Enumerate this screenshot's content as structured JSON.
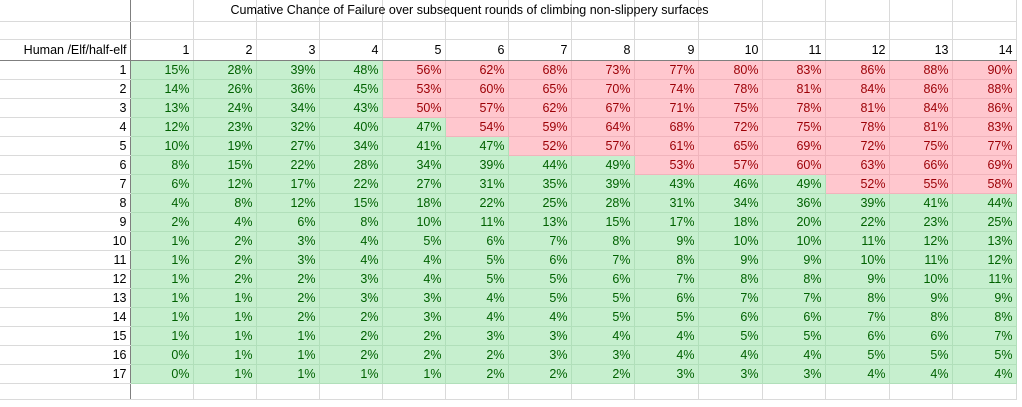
{
  "title": "Cumative Chance of Failure over subsequent rounds of climbing non-slippery surfaces",
  "row_header_label": "Human /Elf/half-elf",
  "columns": [
    "1",
    "2",
    "3",
    "4",
    "5",
    "6",
    "7",
    "8",
    "9",
    "10",
    "11",
    "12",
    "13",
    "14"
  ],
  "threshold_percent": 50,
  "colors": {
    "fail_fill": "#ffc7ce",
    "fail_text": "#9c0006",
    "pass_fill": "#c6efce",
    "pass_text": "#006100"
  },
  "rows": [
    {
      "label": "1",
      "values": [
        "15%",
        "28%",
        "39%",
        "48%",
        "56%",
        "62%",
        "68%",
        "73%",
        "77%",
        "80%",
        "83%",
        "86%",
        "88%",
        "90%"
      ]
    },
    {
      "label": "2",
      "values": [
        "14%",
        "26%",
        "36%",
        "45%",
        "53%",
        "60%",
        "65%",
        "70%",
        "74%",
        "78%",
        "81%",
        "84%",
        "86%",
        "88%"
      ]
    },
    {
      "label": "3",
      "values": [
        "13%",
        "24%",
        "34%",
        "43%",
        "50%",
        "57%",
        "62%",
        "67%",
        "71%",
        "75%",
        "78%",
        "81%",
        "84%",
        "86%"
      ]
    },
    {
      "label": "4",
      "values": [
        "12%",
        "23%",
        "32%",
        "40%",
        "47%",
        "54%",
        "59%",
        "64%",
        "68%",
        "72%",
        "75%",
        "78%",
        "81%",
        "83%"
      ]
    },
    {
      "label": "5",
      "values": [
        "10%",
        "19%",
        "27%",
        "34%",
        "41%",
        "47%",
        "52%",
        "57%",
        "61%",
        "65%",
        "69%",
        "72%",
        "75%",
        "77%"
      ]
    },
    {
      "label": "6",
      "values": [
        "8%",
        "15%",
        "22%",
        "28%",
        "34%",
        "39%",
        "44%",
        "49%",
        "53%",
        "57%",
        "60%",
        "63%",
        "66%",
        "69%"
      ]
    },
    {
      "label": "7",
      "values": [
        "6%",
        "12%",
        "17%",
        "22%",
        "27%",
        "31%",
        "35%",
        "39%",
        "43%",
        "46%",
        "49%",
        "52%",
        "55%",
        "58%"
      ]
    },
    {
      "label": "8",
      "values": [
        "4%",
        "8%",
        "12%",
        "15%",
        "18%",
        "22%",
        "25%",
        "28%",
        "31%",
        "34%",
        "36%",
        "39%",
        "41%",
        "44%"
      ]
    },
    {
      "label": "9",
      "values": [
        "2%",
        "4%",
        "6%",
        "8%",
        "10%",
        "11%",
        "13%",
        "15%",
        "17%",
        "18%",
        "20%",
        "22%",
        "23%",
        "25%"
      ]
    },
    {
      "label": "10",
      "values": [
        "1%",
        "2%",
        "3%",
        "4%",
        "5%",
        "6%",
        "7%",
        "8%",
        "9%",
        "10%",
        "10%",
        "11%",
        "12%",
        "13%"
      ]
    },
    {
      "label": "11",
      "values": [
        "1%",
        "2%",
        "3%",
        "4%",
        "4%",
        "5%",
        "6%",
        "7%",
        "8%",
        "9%",
        "9%",
        "10%",
        "11%",
        "12%"
      ]
    },
    {
      "label": "12",
      "values": [
        "1%",
        "2%",
        "2%",
        "3%",
        "4%",
        "5%",
        "5%",
        "6%",
        "7%",
        "8%",
        "8%",
        "9%",
        "10%",
        "11%"
      ]
    },
    {
      "label": "13",
      "values": [
        "1%",
        "1%",
        "2%",
        "3%",
        "3%",
        "4%",
        "5%",
        "5%",
        "6%",
        "7%",
        "7%",
        "8%",
        "9%",
        "9%"
      ]
    },
    {
      "label": "14",
      "values": [
        "1%",
        "1%",
        "2%",
        "2%",
        "3%",
        "4%",
        "4%",
        "5%",
        "5%",
        "6%",
        "6%",
        "7%",
        "8%",
        "8%"
      ]
    },
    {
      "label": "15",
      "values": [
        "1%",
        "1%",
        "1%",
        "2%",
        "2%",
        "3%",
        "3%",
        "4%",
        "4%",
        "5%",
        "5%",
        "6%",
        "6%",
        "7%"
      ]
    },
    {
      "label": "16",
      "values": [
        "0%",
        "1%",
        "1%",
        "2%",
        "2%",
        "2%",
        "3%",
        "3%",
        "4%",
        "4%",
        "4%",
        "5%",
        "5%",
        "5%"
      ]
    },
    {
      "label": "17",
      "values": [
        "0%",
        "1%",
        "1%",
        "1%",
        "1%",
        "2%",
        "2%",
        "2%",
        "3%",
        "3%",
        "3%",
        "4%",
        "4%",
        "4%"
      ]
    }
  ]
}
